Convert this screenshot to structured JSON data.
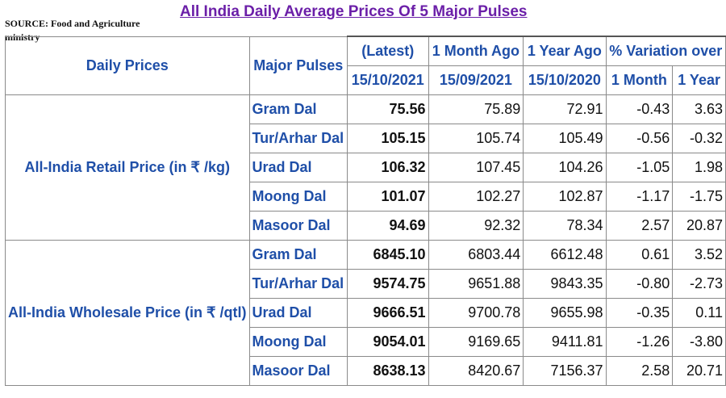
{
  "source": "SOURCE: Food and Agriculture ministry",
  "title": "All India Daily Average Prices Of 5 Major Pulses",
  "headers": {
    "daily_prices": "Daily Prices",
    "major_pulses": "Major Pulses",
    "latest": "(Latest)",
    "month_ago": "1 Month Ago",
    "year_ago": "1 Year Ago",
    "variation": "% Variation over",
    "latest_date": "15/10/2021",
    "month_ago_date": "15/09/2021",
    "year_ago_date": "15/10/2020",
    "var_1month": "1 Month",
    "var_1year": "1 Year"
  },
  "groups": [
    {
      "label": "All-India Retail Price (in ₹ /kg)",
      "rows": [
        {
          "pulse": "Gram Dal",
          "latest": "75.56",
          "month_ago": "75.89",
          "year_ago": "72.91",
          "var_1m": "-0.43",
          "var_1y": "3.63"
        },
        {
          "pulse": "Tur/Arhar Dal",
          "latest": "105.15",
          "month_ago": "105.74",
          "year_ago": "105.49",
          "var_1m": "-0.56",
          "var_1y": "-0.32"
        },
        {
          "pulse": "Urad Dal",
          "latest": "106.32",
          "month_ago": "107.45",
          "year_ago": "104.26",
          "var_1m": "-1.05",
          "var_1y": "1.98"
        },
        {
          "pulse": "Moong Dal",
          "latest": "101.07",
          "month_ago": "102.27",
          "year_ago": "102.87",
          "var_1m": "-1.17",
          "var_1y": "-1.75"
        },
        {
          "pulse": "Masoor Dal",
          "latest": "94.69",
          "month_ago": "92.32",
          "year_ago": "78.34",
          "var_1m": "2.57",
          "var_1y": "20.87"
        }
      ]
    },
    {
      "label": "All-India Wholesale Price (in ₹ /qtl)",
      "rows": [
        {
          "pulse": "Gram Dal",
          "latest": "6845.10",
          "month_ago": "6803.44",
          "year_ago": "6612.48",
          "var_1m": "0.61",
          "var_1y": "3.52"
        },
        {
          "pulse": "Tur/Arhar Dal",
          "latest": "9574.75",
          "month_ago": "9651.88",
          "year_ago": "9843.35",
          "var_1m": "-0.80",
          "var_1y": "-2.73"
        },
        {
          "pulse": "Urad Dal",
          "latest": "9666.51",
          "month_ago": "9700.78",
          "year_ago": "9655.98",
          "var_1m": "-0.35",
          "var_1y": "0.11"
        },
        {
          "pulse": "Moong Dal",
          "latest": "9054.01",
          "month_ago": "9169.65",
          "year_ago": "9411.81",
          "var_1m": "-1.26",
          "var_1y": "-3.80"
        },
        {
          "pulse": "Masoor Dal",
          "latest": "8638.13",
          "month_ago": "8420.67",
          "year_ago": "7156.37",
          "var_1m": "2.58",
          "var_1y": "20.71"
        }
      ]
    }
  ]
}
